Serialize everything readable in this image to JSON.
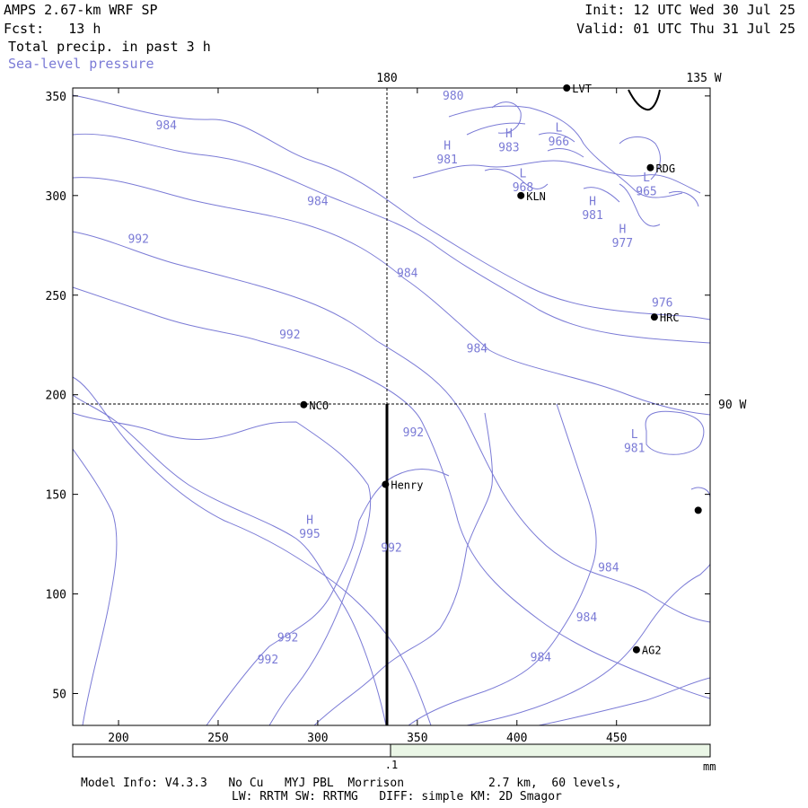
{
  "header": {
    "title": "AMPS 2.67-km WRF SP",
    "forecast": "Fcst:   13 h",
    "field": "Total precip. in past 3 h",
    "overlay": "Sea-level pressure",
    "init": "Init: 12 UTC Wed 30 Jul 25",
    "valid": "Valid: 01 UTC Thu 31 Jul 25"
  },
  "map": {
    "meridian_labels": {
      "m180": "180",
      "m135w": "135 W",
      "m90w": "90 W"
    },
    "y_ticks": [
      "350",
      "300",
      "250",
      "200",
      "150",
      "100",
      "50"
    ],
    "x_ticks": [
      "200",
      "250",
      "300",
      "350",
      "400",
      "450"
    ],
    "stations": [
      {
        "label": "LVT",
        "x": 425,
        "y": 354
      },
      {
        "label": "RDG",
        "x": 467,
        "y": 314
      },
      {
        "label": "KLN",
        "x": 402,
        "y": 300
      },
      {
        "label": "HRC",
        "x": 469,
        "y": 239
      },
      {
        "label": "NCO",
        "x": 293,
        "y": 195
      },
      {
        "label": "Henry",
        "x": 334,
        "y": 155
      },
      {
        "label": "",
        "x": 491,
        "y": 142
      },
      {
        "label": "AG2",
        "x": 460,
        "y": 72
      }
    ],
    "pressure_labels": [
      {
        "text": "980",
        "x": 368,
        "y": 350
      },
      {
        "text": "984",
        "x": 224,
        "y": 335
      },
      {
        "text": "983",
        "x": 396,
        "y": 324
      },
      {
        "text": "966",
        "x": 421,
        "y": 327
      },
      {
        "text": "981",
        "x": 365,
        "y": 318
      },
      {
        "text": "968",
        "x": 403,
        "y": 304
      },
      {
        "text": "965",
        "x": 465,
        "y": 302
      },
      {
        "text": "984",
        "x": 300,
        "y": 297
      },
      {
        "text": "981",
        "x": 438,
        "y": 290
      },
      {
        "text": "992",
        "x": 210,
        "y": 278
      },
      {
        "text": "977",
        "x": 453,
        "y": 276
      },
      {
        "text": "984",
        "x": 345,
        "y": 261
      },
      {
        "text": "976",
        "x": 473,
        "y": 246
      },
      {
        "text": "992",
        "x": 286,
        "y": 230
      },
      {
        "text": "984",
        "x": 380,
        "y": 223
      },
      {
        "text": "992",
        "x": 348,
        "y": 181
      },
      {
        "text": "981",
        "x": 459,
        "y": 173
      },
      {
        "text": "995",
        "x": 296,
        "y": 130
      },
      {
        "text": "992",
        "x": 337,
        "y": 123
      },
      {
        "text": "984",
        "x": 446,
        "y": 113
      },
      {
        "text": "984",
        "x": 435,
        "y": 88
      },
      {
        "text": "992",
        "x": 285,
        "y": 78
      },
      {
        "text": "984",
        "x": 412,
        "y": 68
      },
      {
        "text": "992",
        "x": 275,
        "y": 67
      }
    ],
    "pressure_centers": [
      {
        "text": "H",
        "x": 365,
        "y": 325
      },
      {
        "text": "H",
        "x": 396,
        "y": 331
      },
      {
        "text": "L",
        "x": 421,
        "y": 334
      },
      {
        "text": "L",
        "x": 403,
        "y": 311
      },
      {
        "text": "L",
        "x": 465,
        "y": 309
      },
      {
        "text": "H",
        "x": 438,
        "y": 297
      },
      {
        "text": "H",
        "x": 453,
        "y": 283
      },
      {
        "text": "L",
        "x": 459,
        "y": 180
      },
      {
        "text": "H",
        "x": 296,
        "y": 137
      }
    ]
  },
  "colorbar": {
    "label": ".1",
    "unit": "mm"
  },
  "footer": {
    "line1": "Model Info: V4.3.3   No Cu   MYJ PBL  Morrison            2.7 km,  60 levels,",
    "line2": "LW: RRTM SW: RRTMG   DIFF: simple KM: 2D Smagor"
  },
  "colors": {
    "contour": "#7b7bd6",
    "grid": "#000000",
    "bar_fill": "#eaf6e6"
  }
}
